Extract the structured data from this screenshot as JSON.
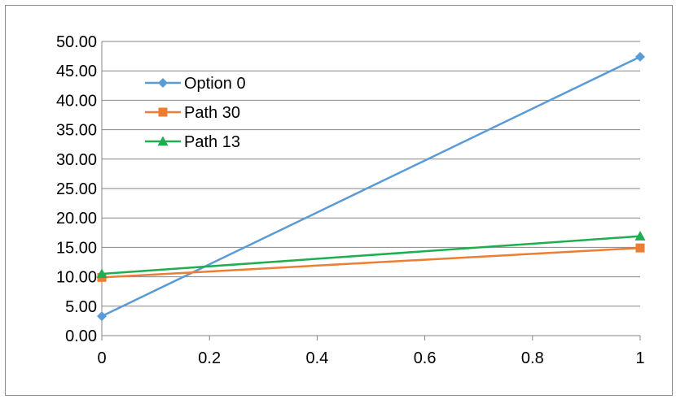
{
  "chart_data": {
    "type": "line",
    "title": "",
    "xlabel": "",
    "ylabel": "",
    "xlim": [
      0,
      1
    ],
    "ylim": [
      0,
      50
    ],
    "x_ticks": [
      "0",
      "0.2",
      "0.4",
      "0.6",
      "0.8",
      "1"
    ],
    "x_tick_values": [
      0,
      0.2,
      0.4,
      0.6,
      0.8,
      1
    ],
    "y_ticks": [
      "0.00",
      "5.00",
      "10.00",
      "15.00",
      "20.00",
      "25.00",
      "30.00",
      "35.00",
      "40.00",
      "45.00",
      "50.00"
    ],
    "y_tick_values": [
      0,
      5,
      10,
      15,
      20,
      25,
      30,
      35,
      40,
      45,
      50
    ],
    "grid": "horizontal",
    "legend_position": "upper-left inside plot",
    "series": [
      {
        "name": "Option 0",
        "color": "#5b9bd5",
        "marker": "diamond",
        "x": [
          0,
          1
        ],
        "values": [
          3.3,
          47.4
        ]
      },
      {
        "name": "Path 30",
        "color": "#ed7d31",
        "marker": "square",
        "x": [
          0,
          1
        ],
        "values": [
          9.9,
          14.9
        ]
      },
      {
        "name": "Path 13",
        "color": "#1fae4f",
        "marker": "triangle",
        "x": [
          0,
          1
        ],
        "values": [
          10.5,
          16.9
        ]
      }
    ]
  }
}
